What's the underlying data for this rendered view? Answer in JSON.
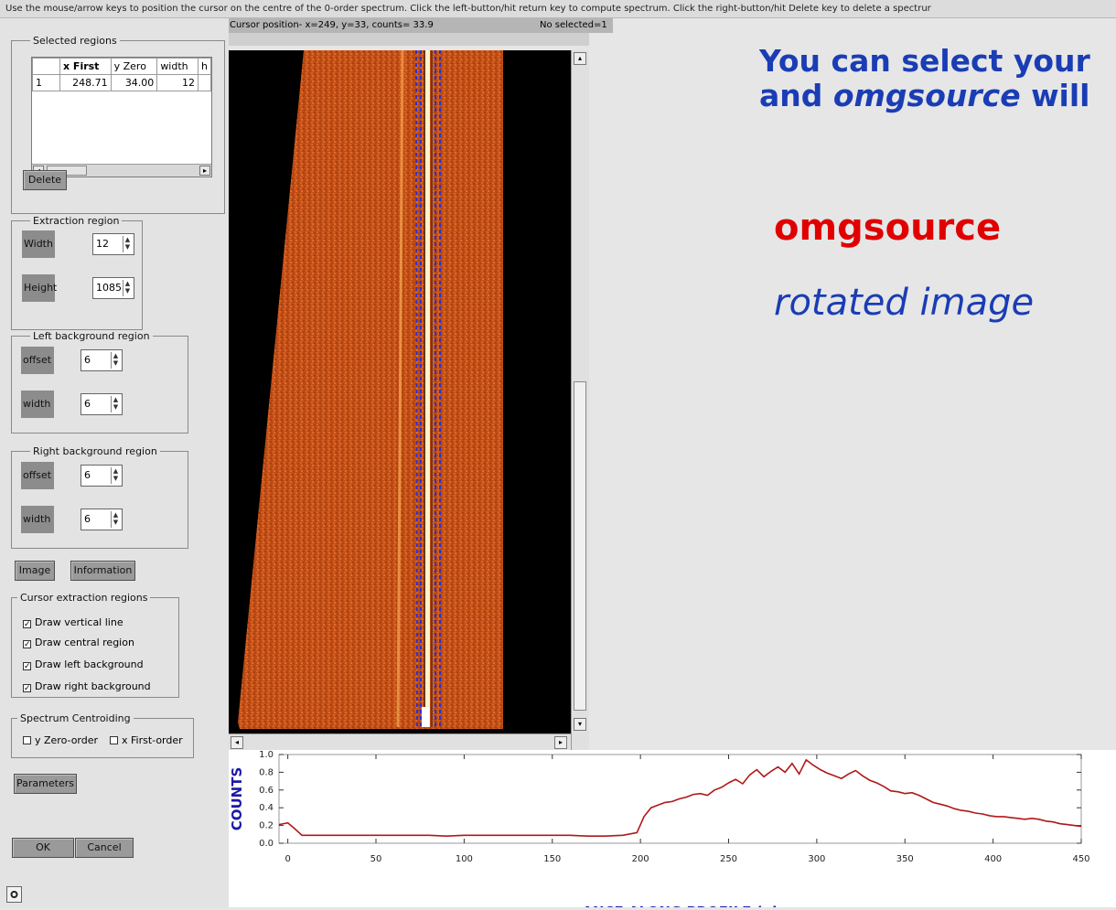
{
  "instruction_bar": "Use the mouse/arrow keys to position the cursor on the centre of the 0-order spectrum. Click the left-button/hit return key to compute spectrum. Click the right-button/hit Delete key to delete a spectrur",
  "selected_regions": {
    "title": "Selected regions",
    "columns": [
      "",
      "x First",
      "y Zero",
      "width",
      "h"
    ],
    "rows": [
      [
        "1",
        "248.71",
        "34.00",
        "12",
        ""
      ]
    ],
    "delete_label": "Delete"
  },
  "extraction": {
    "title": "Extraction region",
    "width_label": "Width",
    "width_value": "12",
    "height_label": "Height",
    "height_value": "1085"
  },
  "left_bg": {
    "title": "Left background region",
    "offset_label": "offset",
    "offset_value": "6",
    "width_label": "width",
    "width_value": "6"
  },
  "right_bg": {
    "title": "Right background region",
    "offset_label": "offset",
    "offset_value": "6",
    "width_label": "width",
    "width_value": "6"
  },
  "buttons": {
    "image": "Image",
    "information": "Information",
    "parameters": "Parameters",
    "ok": "OK",
    "cancel": "Cancel"
  },
  "cursor_regions": {
    "title": "Cursor extraction regions",
    "items": [
      "Draw vertical line",
      "Draw central region",
      "Draw left background",
      "Draw right background"
    ],
    "checked": [
      true,
      true,
      true,
      true
    ]
  },
  "centroiding": {
    "title": "Spectrum Centroiding",
    "y_zero": "y Zero-order",
    "x_first": "x First-order"
  },
  "status": {
    "cursor": "Cursor position- x=249, y=33, counts=    33.9",
    "selected": "No selected=1"
  },
  "headings": {
    "line1": "You can select your",
    "line2_pre": "and ",
    "line2_italic": "omgsource",
    "line2_post": " will",
    "omgsource": "omgsource",
    "rotated": "rotated image"
  },
  "chart_data": {
    "type": "line",
    "ylabel": "COUNTS",
    "xlabel": "·ANCE ALONG PROFILE (pi",
    "xlim": [
      -5,
      450
    ],
    "ylim": [
      0,
      1.0
    ],
    "xticks": [
      "0",
      "50",
      "100",
      "150",
      "200",
      "250",
      "300",
      "350",
      "400",
      "450"
    ],
    "yticks": [
      "0.0",
      "0.2",
      "0.4",
      "0.6",
      "0.8",
      "1.0"
    ],
    "color": "#b01818",
    "x": [
      -5,
      0,
      3,
      8,
      20,
      40,
      60,
      80,
      90,
      100,
      120,
      140,
      160,
      170,
      180,
      190,
      198,
      202,
      206,
      210,
      214,
      218,
      222,
      226,
      230,
      234,
      238,
      242,
      246,
      250,
      254,
      258,
      262,
      266,
      270,
      274,
      278,
      282,
      286,
      290,
      294,
      298,
      302,
      306,
      310,
      314,
      318,
      322,
      326,
      330,
      334,
      338,
      342,
      346,
      350,
      354,
      358,
      362,
      366,
      370,
      374,
      378,
      382,
      386,
      390,
      394,
      398,
      402,
      406,
      410,
      414,
      418,
      422,
      426,
      430,
      434,
      438,
      442,
      446,
      450
    ],
    "y": [
      0.21,
      0.23,
      0.18,
      0.09,
      0.09,
      0.09,
      0.09,
      0.09,
      0.08,
      0.09,
      0.09,
      0.09,
      0.09,
      0.08,
      0.08,
      0.09,
      0.12,
      0.3,
      0.4,
      0.43,
      0.46,
      0.47,
      0.5,
      0.52,
      0.55,
      0.56,
      0.54,
      0.6,
      0.63,
      0.68,
      0.72,
      0.67,
      0.77,
      0.83,
      0.75,
      0.81,
      0.86,
      0.8,
      0.9,
      0.78,
      0.94,
      0.88,
      0.83,
      0.79,
      0.76,
      0.73,
      0.78,
      0.82,
      0.76,
      0.71,
      0.68,
      0.64,
      0.59,
      0.58,
      0.56,
      0.57,
      0.54,
      0.5,
      0.46,
      0.44,
      0.42,
      0.39,
      0.37,
      0.36,
      0.34,
      0.33,
      0.31,
      0.3,
      0.3,
      0.29,
      0.28,
      0.27,
      0.28,
      0.27,
      0.25,
      0.24,
      0.22,
      0.21,
      0.2,
      0.19
    ]
  },
  "colors": {
    "heading_blue": "#1a3db5",
    "heading_red": "#e00000",
    "spectrum_orange": "#d0551a"
  }
}
